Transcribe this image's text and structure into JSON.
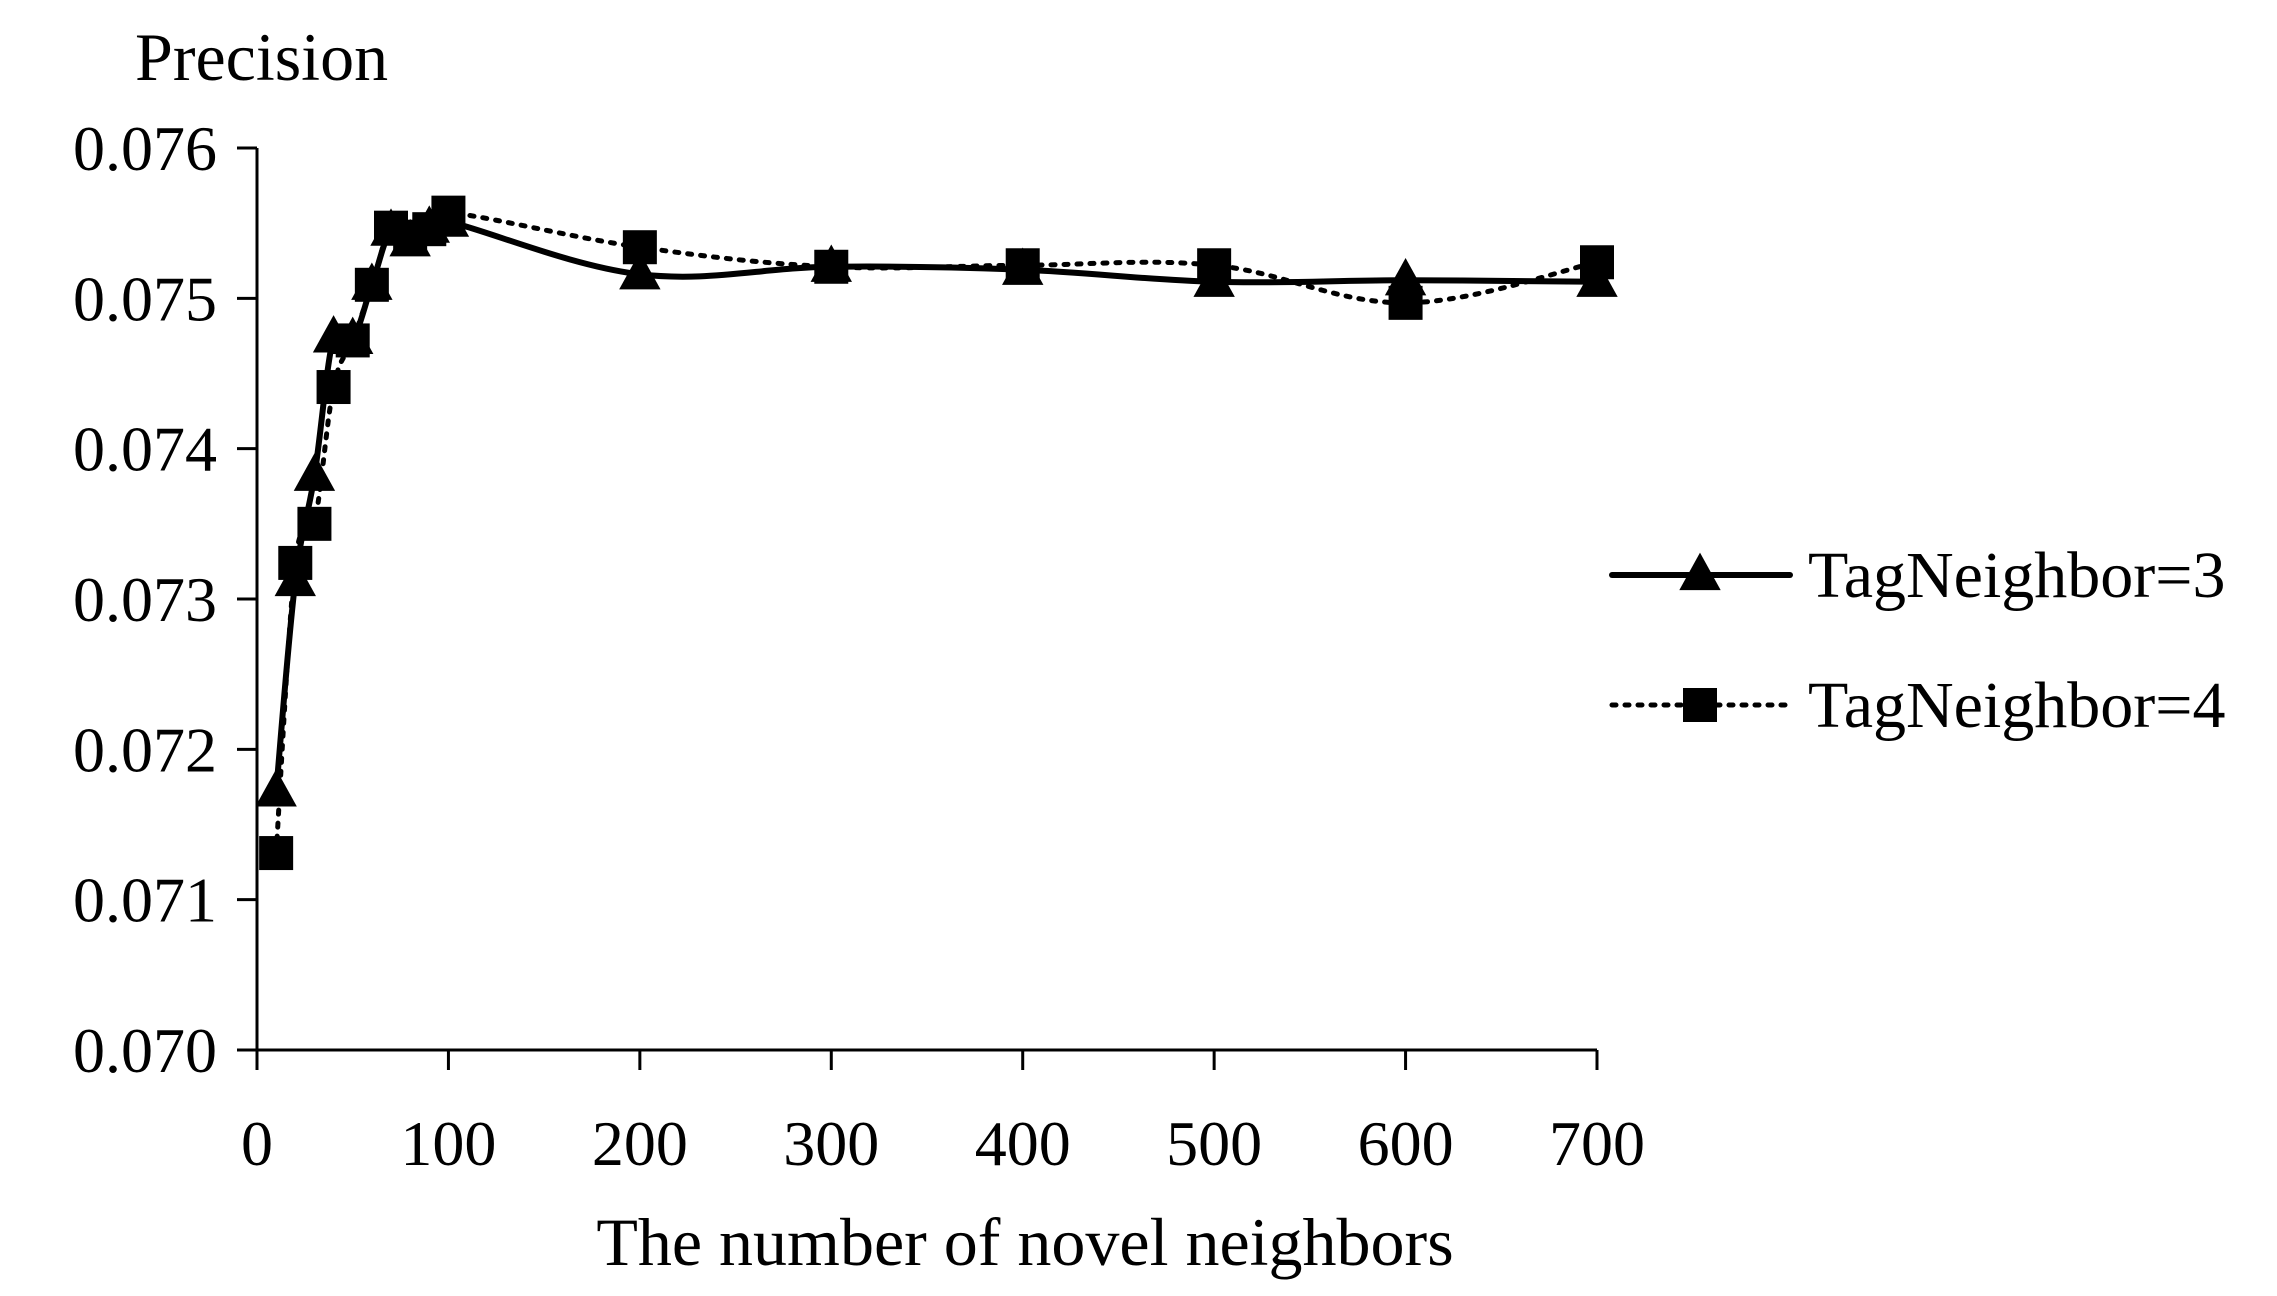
{
  "chart_data": {
    "type": "line",
    "title": "",
    "xlabel": "The number of novel neighbors",
    "ylabel": "Precision",
    "xlim": [
      0,
      700
    ],
    "ylim": [
      0.07,
      0.076
    ],
    "x_ticks": [
      "0",
      "100",
      "200",
      "300",
      "400",
      "500",
      "600",
      "700"
    ],
    "y_ticks": [
      "0.070",
      "0.071",
      "0.072",
      "0.073",
      "0.074",
      "0.075",
      "0.076"
    ],
    "grid": false,
    "legend_position": "right",
    "series": [
      {
        "name": "TagNeighbor=3",
        "line_style": "solid",
        "marker": "triangle",
        "color": "#000000",
        "x": [
          10,
          20,
          30,
          40,
          50,
          60,
          70,
          80,
          90,
          100,
          200,
          300,
          400,
          500,
          600,
          700
        ],
        "y": [
          0.07172,
          0.07312,
          0.07382,
          0.07474,
          0.07473,
          0.07509,
          0.07545,
          0.07538,
          0.07547,
          0.07551,
          0.07516,
          0.07521,
          0.07519,
          0.07511,
          0.07512,
          0.07511
        ]
      },
      {
        "name": "TagNeighbor=4",
        "line_style": "dotted",
        "marker": "square",
        "color": "#000000",
        "x": [
          10,
          20,
          30,
          40,
          50,
          60,
          70,
          80,
          90,
          100,
          200,
          300,
          400,
          500,
          600,
          700
        ],
        "y": [
          0.07131,
          0.07324,
          0.0735,
          0.07441,
          0.07472,
          0.07509,
          0.07547,
          0.07541,
          0.07546,
          0.07557,
          0.07534,
          0.07521,
          0.07522,
          0.07522,
          0.07497,
          0.07524
        ]
      }
    ]
  }
}
